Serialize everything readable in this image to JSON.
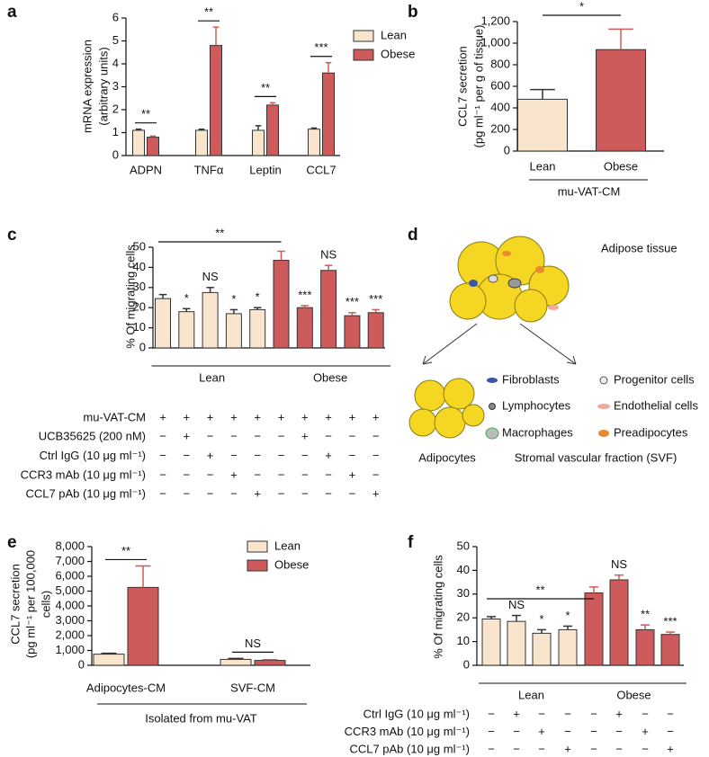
{
  "chart_data": [
    {
      "type": "bar",
      "panel": "a",
      "ylabel": [
        "mRNA expression",
        "(arbitrary units)"
      ],
      "categories": [
        "ADPN",
        "TNFα",
        "Leptin",
        "CCL7"
      ],
      "series": [
        {
          "name": "Lean",
          "color": "#f9e5cd",
          "values": [
            1.1,
            1.1,
            1.1,
            1.15
          ],
          "errors": [
            0.05,
            0.05,
            0.2,
            0.05
          ]
        },
        {
          "name": "Obese",
          "color": "#cd5b5b",
          "values": [
            0.8,
            4.8,
            2.2,
            3.6
          ],
          "errors": [
            0.05,
            0.8,
            0.1,
            0.45
          ]
        }
      ],
      "significance": [
        "**",
        "**",
        "**",
        "***"
      ],
      "ylim": [
        0,
        6
      ],
      "yticks": [
        0,
        1,
        2,
        3,
        4,
        5,
        6
      ]
    },
    {
      "type": "bar",
      "panel": "b",
      "ylabel": [
        "CCL7 secretion",
        "(pg ml⁻¹ per g of tissue)"
      ],
      "categories": [
        "Lean",
        "Obese"
      ],
      "values": [
        480,
        940
      ],
      "errors": [
        90,
        190
      ],
      "colors": [
        "#f9e5cd",
        "#cd5b5b"
      ],
      "significance": "*",
      "group_label": "mu-VAT-CM",
      "ylim": [
        0,
        1200
      ],
      "yticks": [
        0,
        200,
        400,
        600,
        800,
        {
          "value": 1000,
          "label": "1,000"
        },
        {
          "value": 1200,
          "label": "1,200"
        }
      ]
    },
    {
      "type": "bar",
      "panel": "c",
      "ylabel": "% Of migrating cells",
      "series": [
        {
          "name": "Lean",
          "color": "#f9e5cd",
          "values": [
            24.5,
            18,
            27.5,
            17,
            19
          ],
          "errors": [
            2,
            1.5,
            2.5,
            2,
            1
          ],
          "significance": [
            null,
            "*",
            "NS",
            "*",
            "*"
          ]
        },
        {
          "name": "Obese",
          "color": "#cd5b5b",
          "values": [
            43.5,
            20,
            38.5,
            16,
            17.5
          ],
          "errors": [
            4.5,
            1,
            2.5,
            1.5,
            1.5
          ],
          "significance": [
            null,
            "***",
            "NS",
            "***",
            "***"
          ]
        }
      ],
      "bracket_label": "**",
      "conditions": [
        {
          "name": "mu-VAT-CM",
          "signs": [
            "+",
            "+",
            "+",
            "+",
            "+",
            "+",
            "+",
            "+",
            "+",
            "+"
          ]
        },
        {
          "name": "UCB35625 (200 nM)",
          "signs": [
            "−",
            "+",
            "−",
            "−",
            "−",
            "−",
            "+",
            "−",
            "−",
            "−"
          ]
        },
        {
          "name": "Ctrl IgG (10 μg ml⁻¹)",
          "signs": [
            "−",
            "−",
            "+",
            "−",
            "−",
            "−",
            "−",
            "+",
            "−",
            "−"
          ]
        },
        {
          "name": "CCR3 mAb (10 μg ml⁻¹)",
          "signs": [
            "−",
            "−",
            "−",
            "+",
            "−",
            "−",
            "−",
            "−",
            "+",
            "−"
          ]
        },
        {
          "name": "CCL7 pAb (10 μg ml⁻¹)",
          "signs": [
            "−",
            "−",
            "−",
            "−",
            "+",
            "−",
            "−",
            "−",
            "−",
            "+"
          ]
        }
      ],
      "ylim": [
        0,
        50
      ],
      "yticks": [
        0,
        10,
        20,
        30,
        40,
        50
      ]
    },
    {
      "type": "bar",
      "panel": "e",
      "ylabel": [
        "CCL7 secretion",
        "(pg ml⁻¹ per 100,000",
        "cells)"
      ],
      "categories": [
        "Adipocytes-CM",
        "SVF-CM"
      ],
      "series": [
        {
          "name": "Lean",
          "color": "#f9e5cd",
          "values": [
            750,
            400
          ],
          "errors": [
            60,
            60
          ]
        },
        {
          "name": "Obese",
          "color": "#cd5b5b",
          "values": [
            5250,
            330
          ],
          "errors": [
            1450,
            50
          ]
        }
      ],
      "significance": [
        "**",
        "NS"
      ],
      "group_label": "Isolated from mu-VAT",
      "ylim": [
        0,
        8000
      ],
      "yticks": [
        0,
        {
          "value": 1000,
          "label": "1,000"
        },
        {
          "value": 2000,
          "label": "2,000"
        },
        {
          "value": 3000,
          "label": "3,000"
        },
        {
          "value": 4000,
          "label": "4,000"
        },
        {
          "value": 5000,
          "label": "5,000"
        },
        {
          "value": 6000,
          "label": "6,000"
        },
        {
          "value": 7000,
          "label": "7,000"
        },
        {
          "value": 8000,
          "label": "8,000"
        }
      ]
    },
    {
      "type": "bar",
      "panel": "f",
      "ylabel": "% Of migrating cells",
      "series": [
        {
          "name": "Lean",
          "color": "#f9e5cd",
          "values": [
            19.5,
            18.5,
            13.5,
            15
          ],
          "errors": [
            1,
            2.5,
            1.5,
            1.5
          ],
          "significance": [
            null,
            "NS",
            "*",
            "*"
          ]
        },
        {
          "name": "Obese",
          "color": "#cd5b5b",
          "values": [
            30.5,
            36,
            15,
            13
          ],
          "errors": [
            2.5,
            2,
            2,
            1
          ],
          "significance": [
            null,
            "NS",
            "**",
            "***"
          ]
        }
      ],
      "bracket_label": "**",
      "conditions": [
        {
          "name": "Ctrl IgG (10 μg ml⁻¹)",
          "signs": [
            "−",
            "+",
            "−",
            "−",
            "−",
            "+",
            "−",
            "−"
          ]
        },
        {
          "name": "CCR3 mAb (10 μg ml⁻¹)",
          "signs": [
            "−",
            "−",
            "+",
            "−",
            "−",
            "−",
            "+",
            "−"
          ]
        },
        {
          "name": "CCL7 pAb (10 μg ml⁻¹)",
          "signs": [
            "−",
            "−",
            "−",
            "+",
            "−",
            "−",
            "−",
            "+"
          ]
        }
      ],
      "ylim": [
        0,
        50
      ],
      "yticks": [
        0,
        10,
        20,
        30,
        40,
        50
      ]
    }
  ],
  "diagram": {
    "panel": "d",
    "title": "Adipose tissue",
    "branches": [
      {
        "label": "Adipocytes"
      },
      {
        "label": "Stromal vascular fraction (SVF)"
      }
    ],
    "cell_types": [
      "Fibroblasts",
      "Lymphocytes",
      "Macrophages",
      "Progenitor cells",
      "Endothelial cells",
      "Preadipocytes"
    ]
  }
}
